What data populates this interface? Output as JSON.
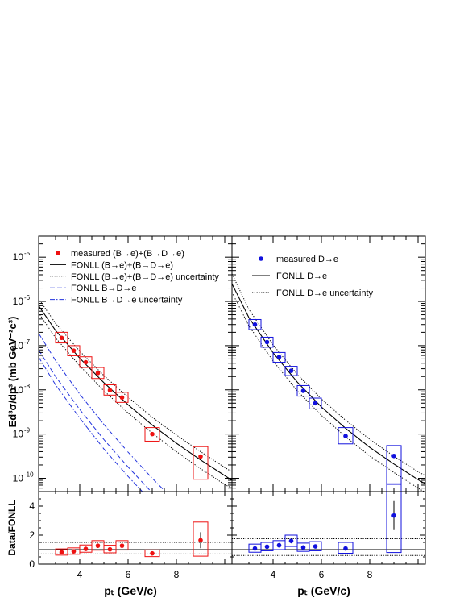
{
  "chart_data": {
    "type": "scatter",
    "ylabel": "Ed³σ/dp³ (mb GeV⁻²c³)",
    "ratio_ylabel": "Data/FONLL",
    "xlabel": "p_T (GeV/c)",
    "xlim": [
      2.3,
      10.3
    ],
    "ylim": [
      5e-11,
      3e-05
    ],
    "y_scale": "log",
    "ratio_ylim": [
      0,
      5
    ],
    "x_ticks": [
      "4",
      "6",
      "8"
    ],
    "y_ticks": [
      "10⁻¹⁰",
      "10⁻⁹",
      "10⁻⁸",
      "10⁻⁷",
      "10⁻⁶",
      "10⁻⁵"
    ],
    "ratio_y_ticks": [
      "0",
      "2",
      "4"
    ],
    "panels": [
      {
        "name": "left",
        "legend": [
          {
            "label": "measured (B→e)+(B→D→e)",
            "style": "marker",
            "color": "#ee1111"
          },
          {
            "label": "FONLL (B→e)+(B→D→e)",
            "style": "solid",
            "color": "#000000"
          },
          {
            "label": "FONLL (B→e)+(B→D→e) uncertainty",
            "style": "dotted",
            "color": "#000000"
          },
          {
            "label": "FONLL B→D→e",
            "style": "dashed",
            "color": "#2233dd"
          },
          {
            "label": "FONLL B→D→e uncertainty",
            "style": "dashdot",
            "color": "#2233dd"
          }
        ],
        "data": {
          "color": "#ee1111",
          "x": [
            3.25,
            3.75,
            4.25,
            4.75,
            5.25,
            5.75,
            7.0,
            9.0
          ],
          "y": [
            1.5e-07,
            7.7e-08,
            4.2e-08,
            2.4e-08,
            9.8e-09,
            6.7e-09,
            1e-09,
            3.1e-10
          ],
          "box_half_width": [
            0.25,
            0.25,
            0.25,
            0.25,
            0.25,
            0.25,
            0.3,
            0.3
          ],
          "box_lo": [
            1.15e-07,
            5.9e-08,
            3.2e-08,
            1.8e-08,
            7.6e-09,
            5.2e-09,
            6.9e-10,
            9.5e-11
          ],
          "box_hi": [
            2e-07,
            1e-07,
            5.6e-08,
            3.2e-08,
            1.3e-08,
            8.8e-09,
            1.4e-09,
            5.2e-10
          ],
          "ratio": [
            0.82,
            0.88,
            1.05,
            1.27,
            1.02,
            1.27,
            0.74,
            1.65
          ],
          "ratio_box_lo": [
            0.62,
            0.68,
            0.82,
            0.96,
            0.78,
            0.97,
            0.52,
            0.55
          ],
          "ratio_box_hi": [
            1.05,
            1.12,
            1.32,
            1.62,
            1.3,
            1.62,
            0.98,
            2.9
          ],
          "ratio_err": [
            0.1,
            0.1,
            0.12,
            0.15,
            0.12,
            0.17,
            0.12,
            0.55
          ]
        },
        "fonll_central": {
          "x": [
            2.3,
            3,
            4,
            5,
            6,
            7,
            8,
            9,
            10,
            10.3
          ],
          "y": [
            8e-07,
            2.2e-07,
            5.2e-08,
            1.45e-08,
            4.6e-09,
            1.6e-09,
            6.2e-10,
            2.6e-10,
            1.15e-10,
            9e-11
          ]
        },
        "fonll_upper": {
          "x": [
            2.3,
            3,
            4,
            5,
            6,
            7,
            8,
            9,
            10,
            10.3
          ],
          "y": [
            1.15e-06,
            3.2e-07,
            7.5e-08,
            2.1e-08,
            6.8e-09,
            2.4e-09,
            9.5e-10,
            4e-10,
            1.75e-10,
            1.4e-10
          ]
        },
        "fonll_lower": {
          "x": [
            2.3,
            3,
            4,
            5,
            6,
            7,
            8,
            9,
            10,
            10.3
          ],
          "y": [
            5.5e-07,
            1.5e-07,
            3.5e-08,
            9.5e-09,
            3e-09,
            1.05e-09,
            4e-10,
            1.65e-10,
            7.2e-11,
            6e-11
          ]
        },
        "bde_central": {
          "x": [
            2.3,
            3,
            4,
            5,
            6,
            7,
            8,
            8.5
          ],
          "y": [
            8e-08,
            2e-08,
            3.6e-09,
            7.5e-10,
            1.8e-10,
            4.7e-11,
            1.3e-11,
            7e-12
          ]
        },
        "bde_upper": {
          "x": [
            2.3,
            3,
            4,
            5,
            6,
            7,
            8,
            8.5
          ],
          "y": [
            1.9e-07,
            4.6e-08,
            8e-09,
            1.65e-09,
            3.9e-10,
            1e-10,
            2.8e-11,
            1.5e-11
          ]
        },
        "bde_lower": {
          "x": [
            2.3,
            3,
            4,
            5,
            6,
            7,
            8,
            8.5
          ],
          "y": [
            5.5e-08,
            1.3e-08,
            2.3e-09,
            4.6e-10,
            1.1e-10,
            2.9e-11,
            8e-12,
            4.5e-12
          ]
        },
        "ratio_band": [
          0.7,
          1.5
        ]
      },
      {
        "name": "right",
        "legend": [
          {
            "label": "measured D→e",
            "style": "marker",
            "color": "#1111dd"
          },
          {
            "label": "FONLL D→e",
            "style": "solid",
            "color": "#000000"
          },
          {
            "label": "FONLL D→e uncertainty",
            "style": "dotted",
            "color": "#000000"
          }
        ],
        "data": {
          "color": "#1111dd",
          "x": [
            3.25,
            3.75,
            4.25,
            4.75,
            5.25,
            5.75,
            7.0,
            9.0
          ],
          "y": [
            3e-07,
            1.2e-07,
            5.5e-08,
            2.7e-08,
            9.5e-09,
            5e-09,
            9e-10,
            3.2e-10
          ],
          "box_half_width": [
            0.25,
            0.25,
            0.25,
            0.25,
            0.25,
            0.25,
            0.3,
            0.3
          ],
          "box_lo": [
            2.3e-07,
            9.2e-08,
            4.2e-08,
            2.1e-08,
            7.2e-09,
            3.7e-09,
            6e-10,
            7.5e-11
          ],
          "box_hi": [
            3.9e-07,
            1.55e-07,
            7e-08,
            3.4e-08,
            1.25e-08,
            6.5e-09,
            1.4e-09,
            5.5e-10
          ],
          "ratio": [
            1.08,
            1.2,
            1.3,
            1.6,
            1.15,
            1.22,
            1.08,
            3.35
          ],
          "ratio_box_lo": [
            0.82,
            0.92,
            1.0,
            1.22,
            0.88,
            0.92,
            0.75,
            0.8
          ],
          "ratio_box_hi": [
            1.38,
            1.5,
            1.62,
            2.0,
            1.45,
            1.55,
            1.5,
            5.5
          ],
          "ratio_err": [
            0.1,
            0.1,
            0.13,
            0.16,
            0.12,
            0.13,
            0.15,
            1.0
          ]
        },
        "fonll_central": {
          "x": [
            2.3,
            3,
            4,
            5,
            6,
            7,
            8,
            9,
            10,
            10.3
          ],
          "y": [
            2.5e-06,
            4.3e-07,
            6.9e-08,
            1.5e-08,
            4.1e-09,
            1.35e-09,
            5e-10,
            2.1e-10,
            9.3e-11,
            7.5e-11
          ]
        },
        "fonll_upper": {
          "x": [
            2.3,
            3,
            4,
            5,
            6,
            7,
            8,
            9,
            10,
            10.3
          ],
          "y": [
            4.2e-06,
            6.6e-07,
            1.04e-07,
            2.25e-08,
            6.2e-09,
            2.05e-09,
            7.6e-10,
            3.15e-10,
            1.4e-10,
            1.15e-10
          ]
        },
        "fonll_lower": {
          "x": [
            2.3,
            3,
            4,
            5,
            6,
            7,
            8,
            9,
            10,
            10.3
          ],
          "y": [
            1.6e-06,
            2.8e-07,
            4.5e-08,
            9.5e-09,
            2.65e-09,
            8.7e-10,
            3.2e-10,
            1.35e-10,
            6e-11,
            4.8e-11
          ]
        },
        "ratio_band": [
          0.6,
          1.75
        ]
      }
    ]
  }
}
